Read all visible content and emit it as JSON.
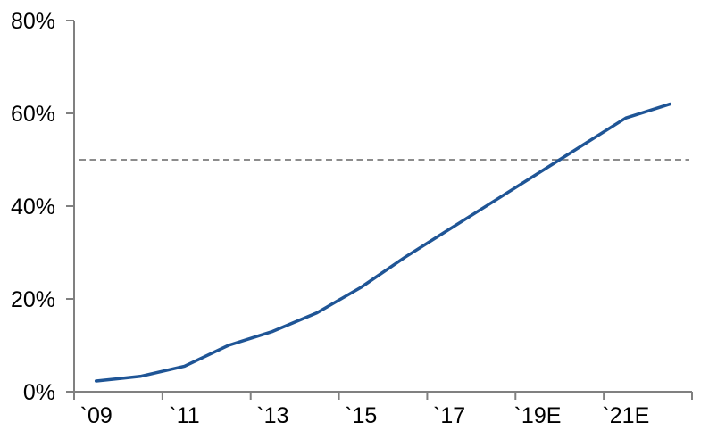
{
  "chart_data": {
    "type": "line",
    "title": "",
    "xlabel": "",
    "ylabel": "",
    "n_points": 14,
    "values": [
      2.3,
      3.3,
      5.5,
      10,
      13,
      17,
      22.5,
      29,
      35,
      41,
      47,
      53,
      59,
      62
    ],
    "x_labels": [
      "`09",
      "`11",
      "`13",
      "`15",
      "`17",
      "`19E",
      "`21E"
    ],
    "x_label_positions": [
      0,
      2,
      4,
      6,
      8,
      10,
      12
    ],
    "x_tick_every_n_categories": 2,
    "y_ticks": [
      "0%",
      "20%",
      "40%",
      "60%",
      "80%"
    ],
    "y_tick_values": [
      0,
      20,
      40,
      60,
      80
    ],
    "ylim": [
      0,
      80
    ],
    "grid": false,
    "legend": false,
    "series_color": "#1F5596",
    "axis_color": "#808080",
    "reference_line": {
      "value": 50,
      "style": "dashed",
      "color": "#666666"
    }
  }
}
